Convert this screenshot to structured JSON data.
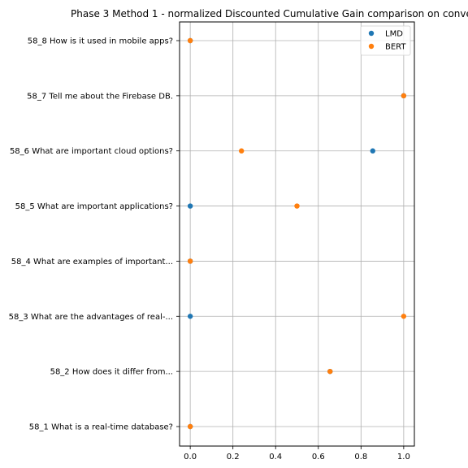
{
  "chart_data": {
    "type": "scatter",
    "title": "Phase 3 Method 1 - normalized Discounted Cumulative Gain comparison on conve",
    "xlabel": "",
    "ylabel": "",
    "xlim": [
      -0.05,
      1.05
    ],
    "xticks": [
      "0.0",
      "0.2",
      "0.4",
      "0.6",
      "0.8",
      "1.0"
    ],
    "grid": true,
    "legend_position": "top-right",
    "categories": [
      "58_1 What is a real-time database?",
      "58_2 How does it differ from...",
      "58_3 What are the advantages of real-...",
      "58_4 What are examples of important...",
      "58_5 What are important applications?",
      "58_6 What are important cloud options?",
      "58_7 Tell me about the Firebase DB.",
      "58_8 How is it used in mobile apps?"
    ],
    "series": [
      {
        "name": "LMD",
        "color": "#1f77b4",
        "values": [
          0.0,
          0.655,
          0.0,
          0.0,
          0.0,
          0.855,
          1.0,
          0.0
        ]
      },
      {
        "name": "BERT",
        "color": "#ff7f0e",
        "values": [
          0.0,
          0.655,
          1.0,
          0.0,
          0.5,
          0.24,
          1.0,
          0.0
        ]
      }
    ]
  }
}
